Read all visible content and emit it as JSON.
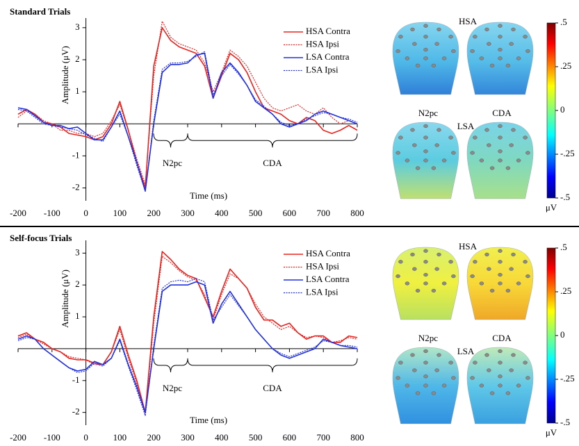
{
  "chart_data": [
    {
      "type": "line",
      "title": "Standard Trials",
      "xlabel": "Time (ms)",
      "ylabel": "Amplitude (μV)",
      "x": [
        -200,
        -175,
        -150,
        -125,
        -100,
        -75,
        -50,
        -25,
        0,
        25,
        50,
        75,
        100,
        125,
        150,
        175,
        200,
        225,
        250,
        275,
        300,
        325,
        350,
        375,
        400,
        425,
        450,
        475,
        500,
        525,
        550,
        575,
        600,
        625,
        650,
        675,
        700,
        725,
        750,
        775,
        800
      ],
      "xlim": [
        -200,
        800
      ],
      "xticks": [
        -200,
        -100,
        0,
        100,
        200,
        300,
        400,
        500,
        600,
        700,
        800
      ],
      "ylim": [
        -2.4,
        3.3
      ],
      "yticks": [
        -2,
        -1,
        1,
        2,
        3
      ],
      "legend": "upper right",
      "annotations": [
        "N2pc",
        "CDA"
      ],
      "series": [
        {
          "name": "HSA Contra",
          "color": "#e8211d",
          "linestyle": "solid",
          "values": [
            0.3,
            0.45,
            0.3,
            0.05,
            0.0,
            -0.1,
            -0.3,
            -0.35,
            -0.4,
            -0.5,
            -0.4,
            0.0,
            0.7,
            -0.2,
            -1.2,
            -2.0,
            1.8,
            3.0,
            2.6,
            2.4,
            2.3,
            2.2,
            1.8,
            0.8,
            1.5,
            2.2,
            2.0,
            1.6,
            1.0,
            0.5,
            0.4,
            0.3,
            0.1,
            0.0,
            0.2,
            0.1,
            -0.2,
            -0.3,
            -0.2,
            -0.05,
            -0.2
          ]
        },
        {
          "name": "HSA Ipsi",
          "color": "#e8211d",
          "linestyle": "dotted",
          "values": [
            0.2,
            0.4,
            0.3,
            0.1,
            0.0,
            -0.2,
            -0.2,
            -0.3,
            -0.3,
            -0.4,
            -0.3,
            0.1,
            0.6,
            -0.2,
            -1.1,
            -1.9,
            1.5,
            3.2,
            2.7,
            2.5,
            2.4,
            2.3,
            1.9,
            1.0,
            1.6,
            2.3,
            2.1,
            1.8,
            1.3,
            0.8,
            0.5,
            0.4,
            0.5,
            0.6,
            0.4,
            0.3,
            0.5,
            0.2,
            0.0,
            0.1,
            0.0
          ]
        },
        {
          "name": "LSA Contra",
          "color": "#1f2fe0",
          "linestyle": "solid",
          "values": [
            0.5,
            0.45,
            0.25,
            0.05,
            -0.05,
            -0.05,
            -0.15,
            -0.1,
            -0.3,
            -0.5,
            -0.5,
            -0.1,
            0.4,
            -0.4,
            -1.2,
            -2.1,
            0.0,
            1.6,
            1.85,
            1.85,
            1.9,
            2.15,
            2.2,
            0.8,
            1.6,
            1.9,
            1.6,
            1.2,
            0.7,
            0.5,
            0.3,
            0.0,
            -0.1,
            0.0,
            0.1,
            0.3,
            0.4,
            0.3,
            0.2,
            0.1,
            0.0
          ]
        },
        {
          "name": "LSA Ipsi",
          "color": "#1f2fe0",
          "linestyle": "dotted",
          "values": [
            0.45,
            0.4,
            0.2,
            0.0,
            -0.05,
            -0.1,
            -0.15,
            -0.2,
            -0.35,
            -0.45,
            -0.55,
            -0.1,
            0.3,
            -0.4,
            -1.3,
            -2.1,
            0.1,
            1.7,
            1.9,
            1.9,
            1.95,
            2.1,
            2.25,
            0.9,
            1.5,
            1.85,
            1.55,
            1.2,
            0.75,
            0.55,
            0.3,
            0.05,
            -0.05,
            0.0,
            0.15,
            0.25,
            0.35,
            0.3,
            0.2,
            0.15,
            0.05
          ]
        }
      ]
    },
    {
      "type": "line",
      "title": "Self-focus Trials",
      "xlabel": "Time (ms)",
      "ylabel": "Amplitude (μV)",
      "x": [
        -200,
        -175,
        -150,
        -125,
        -100,
        -75,
        -50,
        -25,
        0,
        25,
        50,
        75,
        100,
        125,
        150,
        175,
        200,
        225,
        250,
        275,
        300,
        325,
        350,
        375,
        400,
        425,
        450,
        475,
        500,
        525,
        550,
        575,
        600,
        625,
        650,
        675,
        700,
        725,
        750,
        775,
        800
      ],
      "xlim": [
        -200,
        800
      ],
      "xticks": [
        -200,
        -100,
        0,
        100,
        200,
        300,
        400,
        500,
        600,
        700,
        800
      ],
      "ylim": [
        -2.4,
        3.4
      ],
      "yticks": [
        -2,
        -1,
        1,
        2,
        3
      ],
      "legend": "upper right",
      "annotations": [
        "N2pc",
        "CDA"
      ],
      "series": [
        {
          "name": "HSA Contra",
          "color": "#e8211d",
          "linestyle": "solid",
          "values": [
            0.4,
            0.5,
            0.3,
            0.2,
            0.0,
            -0.1,
            -0.3,
            -0.35,
            -0.35,
            -0.45,
            -0.5,
            -0.1,
            0.7,
            -0.2,
            -1.0,
            -2.0,
            1.0,
            3.05,
            2.8,
            2.5,
            2.3,
            2.2,
            1.6,
            1.0,
            1.8,
            2.5,
            2.2,
            1.9,
            1.3,
            0.9,
            0.9,
            0.7,
            0.8,
            0.5,
            0.3,
            0.4,
            0.4,
            0.2,
            0.2,
            0.4,
            0.35
          ]
        },
        {
          "name": "HSA Ipsi",
          "color": "#e8211d",
          "linestyle": "dotted",
          "values": [
            0.35,
            0.45,
            0.3,
            0.15,
            0.0,
            -0.1,
            -0.25,
            -0.3,
            -0.35,
            -0.5,
            -0.5,
            -0.1,
            0.6,
            -0.3,
            -1.1,
            -2.1,
            0.8,
            2.9,
            2.7,
            2.45,
            2.25,
            2.15,
            1.7,
            0.9,
            1.7,
            2.35,
            2.2,
            1.9,
            1.4,
            1.0,
            0.8,
            0.6,
            0.7,
            0.5,
            0.35,
            0.4,
            0.35,
            0.2,
            0.25,
            0.35,
            0.3
          ]
        },
        {
          "name": "LSA Contra",
          "color": "#1f2fe0",
          "linestyle": "solid",
          "values": [
            0.3,
            0.4,
            0.3,
            0.0,
            -0.2,
            -0.4,
            -0.6,
            -0.7,
            -0.65,
            -0.4,
            -0.5,
            -0.3,
            0.3,
            -0.5,
            -1.2,
            -2.0,
            0.0,
            1.8,
            2.0,
            2.0,
            2.0,
            2.1,
            2.0,
            0.8,
            1.4,
            1.8,
            1.4,
            1.0,
            0.6,
            0.3,
            0.0,
            -0.2,
            -0.3,
            -0.2,
            -0.1,
            0.0,
            0.3,
            0.2,
            0.1,
            0.05,
            0.0
          ]
        },
        {
          "name": "LSA Ipsi",
          "color": "#1f2fe0",
          "linestyle": "dotted",
          "values": [
            0.25,
            0.35,
            0.3,
            0.0,
            -0.2,
            -0.4,
            -0.6,
            -0.75,
            -0.7,
            -0.45,
            -0.55,
            -0.3,
            0.25,
            -0.55,
            -1.3,
            -2.1,
            0.1,
            1.9,
            2.1,
            2.15,
            2.1,
            2.2,
            2.1,
            0.9,
            1.3,
            1.7,
            1.35,
            1.0,
            0.6,
            0.3,
            0.0,
            -0.15,
            -0.25,
            -0.15,
            -0.05,
            0.05,
            0.25,
            0.2,
            0.1,
            0.1,
            0.05
          ]
        }
      ]
    }
  ],
  "topomaps": [
    {
      "labels": [
        "HSA",
        "N2pc",
        "LSA",
        "CDA"
      ],
      "colorbar": {
        "lim": [
          -0.5,
          0.5
        ],
        "unit": "μV",
        "ticks": [
          {
            "value": 0.5,
            "label": ".5"
          },
          {
            "value": 0.25,
            "label": ".25"
          },
          0,
          {
            "value": -0.25,
            "label": "-.25"
          },
          {
            "value": -0.5,
            "label": "-.5"
          }
        ]
      }
    },
    {
      "labels": [
        "HSA",
        "N2pc",
        "LSA",
        "CDA"
      ],
      "colorbar": {
        "lim": [
          -0.5,
          0.5
        ],
        "unit": "μV",
        "ticks": [
          {
            "value": 0.5,
            "label": ".5"
          },
          {
            "value": 0.25,
            "label": ".25"
          },
          0,
          {
            "value": -0.25,
            "label": "-.25"
          },
          {
            "value": -0.5,
            "label": "-.5"
          }
        ]
      }
    }
  ]
}
